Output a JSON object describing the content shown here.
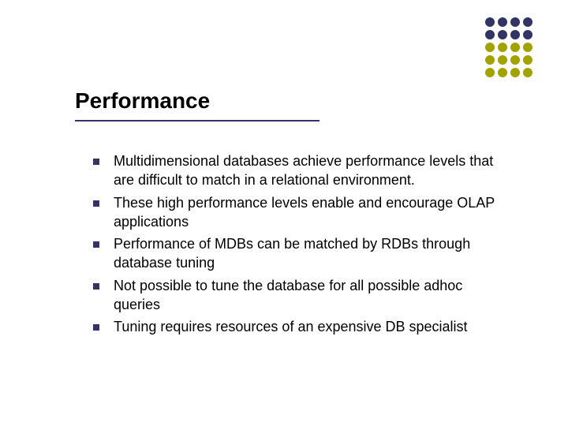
{
  "title": "Performance",
  "title_color": "#000000",
  "title_fontsize": 28,
  "underline_color": "#333366",
  "background_color": "#ffffff",
  "dots": {
    "rows": 5,
    "cols": 4,
    "dot_size": 12,
    "gap": 4,
    "colors": [
      [
        "#333366",
        "#333366",
        "#333366",
        "#333366"
      ],
      [
        "#333366",
        "#333366",
        "#333366",
        "#333366"
      ],
      [
        "#a2a200",
        "#a2a200",
        "#a2a200",
        "#a2a200"
      ],
      [
        "#a2a200",
        "#a2a200",
        "#a2a200",
        "#a2a200"
      ],
      [
        "#a2a200",
        "#a2a200",
        "#a2a200",
        "#a2a200"
      ]
    ]
  },
  "bullets": [
    "Multidimensional databases achieve performance levels that are difficult to match in a relational environment.",
    "These high performance levels enable and encourage OLAP applications",
    "Performance of MDBs can be matched by RDBs through database tuning",
    "Not possible to tune the database for all possible adhoc queries",
    "Tuning requires resources of an expensive DB specialist"
  ],
  "bullet_marker_color": "#333366",
  "bullet_text_color": "#000000",
  "bullet_fontsize": 18
}
